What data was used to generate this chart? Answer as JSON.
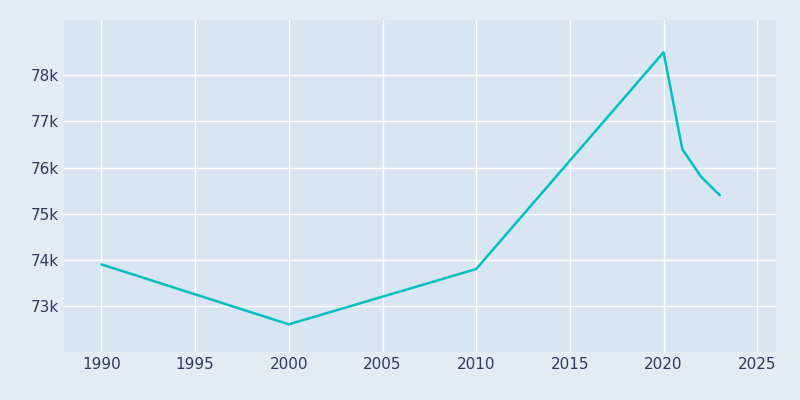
{
  "years": [
    1990,
    2000,
    2010,
    2020,
    2021,
    2022,
    2023
  ],
  "population": [
    73900,
    72600,
    73800,
    78500,
    76400,
    75800,
    75400
  ],
  "line_color": "#00C0C0",
  "line_width": 1.8,
  "bg_color": "#E3ECF5",
  "plot_bg_color": "#D9E6F2",
  "grid_color": "#FFFFFF",
  "tick_color": "#2E3A5C",
  "ylim": [
    72000,
    79200
  ],
  "xlim": [
    1988,
    2026
  ],
  "yticks": [
    73000,
    74000,
    75000,
    76000,
    77000,
    78000
  ],
  "xticks": [
    1990,
    1995,
    2000,
    2005,
    2010,
    2015,
    2020,
    2025
  ],
  "tick_fontsize": 11
}
